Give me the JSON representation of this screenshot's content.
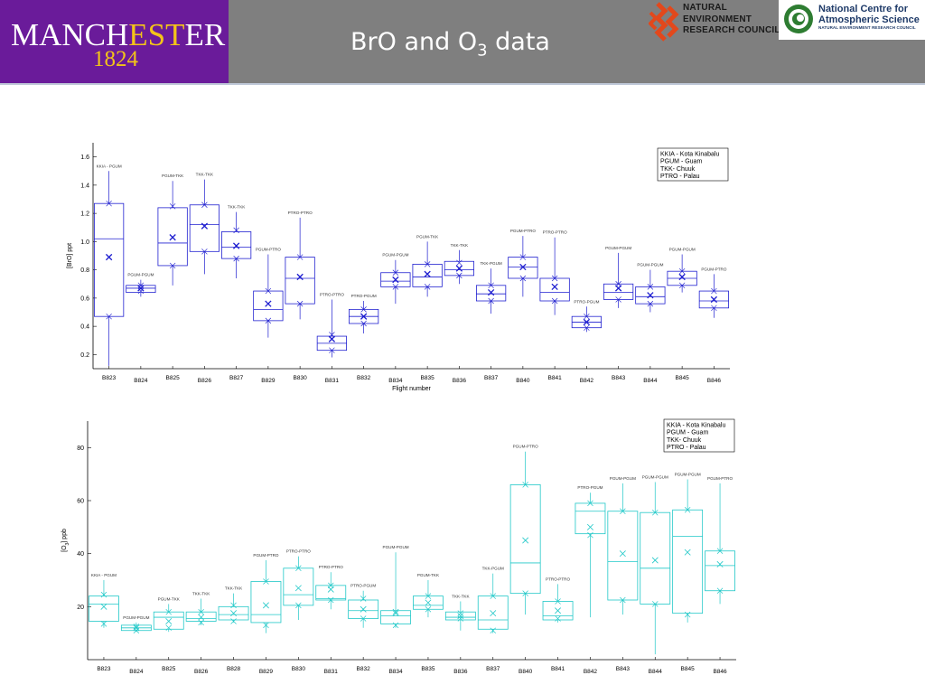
{
  "header": {
    "university_name_part1": "MANCH",
    "university_name_part2": "EST",
    "university_name_part3": "ER",
    "university_year": "1824",
    "title_main": "BrO and O",
    "title_sub": "3",
    "title_tail": " data",
    "nerc_line1": "NATURAL",
    "nerc_line2": "ENVIRONMENT",
    "nerc_line3": "RESEARCH COUNCIL",
    "ncas_line1": "National Centre for",
    "ncas_line2": "Atmospheric Science",
    "ncas_line3": "NATURAL ENVIRONMENT RESEARCH COUNCIL",
    "colors": {
      "manchester_purple": "#6a1b9a",
      "manchester_gold": "#f3c419",
      "header_grey": "#7f7f7f",
      "nerc_red": "#e2481c",
      "ncas_green": "#2e7d32"
    }
  },
  "chart_data": [
    {
      "type": "box",
      "ylabel": "[BrO] ppt",
      "xlabel": "Flight number",
      "ylim": [
        0.1,
        1.7
      ],
      "yticks": [
        0.2,
        0.4,
        0.6,
        0.8,
        1.0,
        1.2,
        1.4,
        1.6
      ],
      "ytick_labels": [
        "0.2",
        "0.4",
        "0.6",
        "0.8",
        "1.0",
        "1.2",
        "1.4",
        "1.6"
      ],
      "color": "#2020d0",
      "legend": [
        "KKIA - Kota Kinabalu",
        "PGUM - Guam",
        "TKK- Chuuk",
        "PTRO - Palau"
      ],
      "legend_position": "top-right",
      "grid": false,
      "categories": [
        "B823",
        "B824",
        "B825",
        "B826",
        "B827",
        "B829",
        "B830",
        "B831",
        "B832",
        "B834",
        "B835",
        "B836",
        "B837",
        "B840",
        "B841",
        "B842",
        "B843",
        "B844",
        "B845",
        "B846"
      ],
      "routes": [
        "KKIA - PGUM",
        "PGUM-PGUM",
        "PGUM-TKK",
        "TKK-TKK",
        "TKK-TKK",
        "PGUM-PTRO",
        "PTRO-PTRO",
        "PTRO-PTRO",
        "PTRO-PGUM",
        "PGUM-PGUM",
        "PGUM-TKK",
        "TKK-TKK",
        "TKK-PGUM",
        "PGUM-PTRO",
        "PTRO-PTRO",
        "PTRO-PGUM",
        "PGUM-PGUM",
        "PGUM-PGUM",
        "PGUM-PGUM",
        "PGUM-PTRO"
      ],
      "whisker_low": [
        0.12,
        0.61,
        0.69,
        0.77,
        0.74,
        0.32,
        0.45,
        0.18,
        0.35,
        0.56,
        0.61,
        0.7,
        0.49,
        0.61,
        0.48,
        0.36,
        0.53,
        0.5,
        0.64,
        0.46
      ],
      "q1": [
        0.47,
        0.64,
        0.83,
        0.93,
        0.88,
        0.44,
        0.56,
        0.23,
        0.42,
        0.68,
        0.68,
        0.76,
        0.58,
        0.74,
        0.58,
        0.39,
        0.59,
        0.56,
        0.69,
        0.53
      ],
      "median": [
        1.02,
        0.67,
        0.99,
        1.12,
        0.96,
        0.52,
        0.74,
        0.28,
        0.47,
        0.72,
        0.75,
        0.8,
        0.63,
        0.82,
        0.64,
        0.43,
        0.64,
        0.61,
        0.74,
        0.58
      ],
      "q3": [
        1.27,
        0.69,
        1.24,
        1.26,
        1.07,
        0.65,
        0.89,
        0.33,
        0.52,
        0.78,
        0.84,
        0.86,
        0.69,
        0.89,
        0.74,
        0.47,
        0.7,
        0.68,
        0.79,
        0.65
      ],
      "whisker_high": [
        1.5,
        0.73,
        1.43,
        1.44,
        1.21,
        0.91,
        1.17,
        0.59,
        0.58,
        0.87,
        1.0,
        0.94,
        0.81,
        1.04,
        1.03,
        0.54,
        0.92,
        0.8,
        0.91,
        0.77
      ],
      "mean": [
        0.89,
        0.67,
        1.03,
        1.11,
        0.97,
        0.56,
        0.75,
        0.31,
        0.47,
        0.73,
        0.77,
        0.81,
        0.64,
        0.82,
        0.68,
        0.43,
        0.67,
        0.62,
        0.75,
        0.59
      ],
      "p_low": [
        0.47,
        0.65,
        0.83,
        0.93,
        0.88,
        0.44,
        0.56,
        0.23,
        0.42,
        0.68,
        0.68,
        0.76,
        0.58,
        0.74,
        0.58,
        0.39,
        0.59,
        0.56,
        0.69,
        0.53
      ],
      "p_high": [
        1.27,
        0.69,
        1.25,
        1.26,
        1.08,
        0.65,
        0.89,
        0.34,
        0.52,
        0.78,
        0.84,
        0.85,
        0.69,
        0.89,
        0.74,
        0.47,
        0.7,
        0.68,
        0.79,
        0.65
      ]
    },
    {
      "type": "box",
      "ylabel": "[O3] ppb",
      "xlabel": "",
      "ylim": [
        0,
        90
      ],
      "yticks": [
        20,
        40,
        60,
        80
      ],
      "ytick_labels": [
        "20",
        "40",
        "60",
        "80"
      ],
      "color": "#20c8c8",
      "legend": [
        "KKIA - Kota Kinabalu",
        "PGUM - Guam",
        "TKK- Chuuk",
        "PTRO - Palau"
      ],
      "legend_position": "top-right",
      "grid": false,
      "categories": [
        "B823",
        "B824",
        "B825",
        "B826",
        "B828",
        "B829",
        "B830",
        "B831",
        "B832",
        "B834",
        "B835",
        "B836",
        "B837",
        "B840",
        "B841",
        "B842",
        "B843",
        "B844",
        "B845",
        "B846"
      ],
      "routes": [
        "KKIA - PGUM",
        "PGUM-PGUM",
        "PGUM-TKK",
        "TKK-TKK",
        "TKK-TKK",
        "PGUM-PTRO",
        "PTRO-PTRO",
        "PTRO-PTRO",
        "PTRO-PGUM",
        "PGUM-PGUM",
        "PGUM-TKK",
        "TKK-TKK",
        "TKK-PGUM",
        "PGUM-PTRO",
        "PTRO-PTRO",
        "PTRO-PGUM",
        "PGUM-PGUM",
        "PGUM-PGUM",
        "PGUM-PGUM",
        "PGUM-PTRO"
      ],
      "whisker_low": [
        12,
        10.5,
        10.5,
        13,
        14,
        10,
        15,
        19,
        12,
        12,
        16,
        11,
        10,
        17,
        14,
        16,
        17,
        2,
        14,
        21
      ],
      "q1": [
        14.5,
        11,
        11.5,
        14.5,
        15,
        14,
        20.5,
        22.5,
        15.5,
        13.5,
        19,
        15,
        11.5,
        25,
        15,
        47.5,
        22.5,
        21,
        17.5,
        26
      ],
      "median": [
        21,
        12,
        16,
        15.5,
        17,
        17,
        24.5,
        23,
        18.5,
        16.5,
        20.5,
        16,
        15,
        36.5,
        16.5,
        56,
        37,
        34.5,
        46.5,
        35.5
      ],
      "q3": [
        24,
        13,
        18,
        18,
        20,
        29.5,
        34.5,
        28,
        22.5,
        18.5,
        24,
        18,
        24,
        66,
        22,
        59,
        56,
        55.5,
        56.5,
        41
      ],
      "whisker_high": [
        30,
        14,
        21,
        23,
        25,
        37.5,
        39,
        33,
        26,
        40.5,
        30,
        22,
        32.5,
        78.5,
        28.5,
        63,
        66.5,
        67,
        68,
        66.5
      ],
      "mean": [
        20,
        12,
        14.5,
        16,
        17.5,
        20.5,
        27,
        26.5,
        19,
        18,
        21.5,
        16.5,
        17.5,
        45,
        18.5,
        50,
        40,
        37.5,
        40.5,
        36
      ],
      "p_low": [
        13.5,
        11,
        12,
        14,
        14.5,
        13,
        20.5,
        22.5,
        15.5,
        13,
        19,
        15.5,
        11,
        25,
        15.5,
        47,
        22.5,
        21,
        17,
        26
      ],
      "p_high": [
        24.5,
        12.5,
        18,
        18,
        20.5,
        29.5,
        34.5,
        28,
        23,
        17.5,
        24,
        17.5,
        24,
        66,
        22,
        59,
        56,
        55.5,
        56.5,
        41
      ]
    }
  ]
}
